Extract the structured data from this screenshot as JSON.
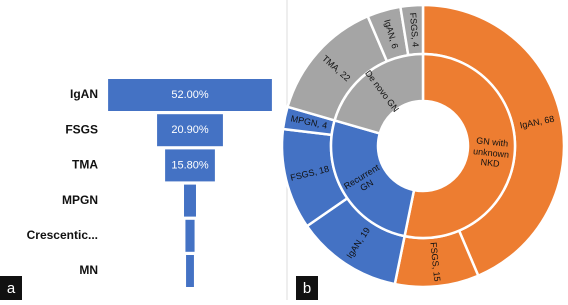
{
  "chart_data": [
    {
      "type": "funnel",
      "panel_label": "a",
      "categories": [
        "IgAN",
        "FSGS",
        "TMA",
        "MPGN",
        "Crescentic...",
        "MN"
      ],
      "values": [
        52,
        20.9,
        15.8,
        3.8,
        2.9,
        2.5
      ],
      "value_labels": [
        "52.00%",
        "20.90%",
        "15.80%",
        null,
        null,
        null
      ],
      "color": "#4472c4"
    },
    {
      "type": "sunburst",
      "panel_label": "b",
      "groups": [
        {
          "name": "GN with unknown NKD",
          "color": "#ed7d31",
          "children": [
            {
              "label": "IgAN, 68",
              "value": 68
            },
            {
              "label": "FSGS, 15",
              "value": 15
            }
          ]
        },
        {
          "name": "Recurrent GN",
          "color": "#4472c4",
          "children": [
            {
              "label": "IgAN, 19",
              "value": 19
            },
            {
              "label": "FSGS, 18",
              "value": 18
            },
            {
              "label": "MPGN, 4",
              "value": 4
            }
          ]
        },
        {
          "name": "De novo GN",
          "color": "#a5a5a5",
          "children": [
            {
              "label": "TMA, 22",
              "value": 22
            },
            {
              "label": "IgAN, 6",
              "value": 6
            },
            {
              "label": "FSGS, 4",
              "value": 4
            }
          ]
        }
      ]
    }
  ]
}
